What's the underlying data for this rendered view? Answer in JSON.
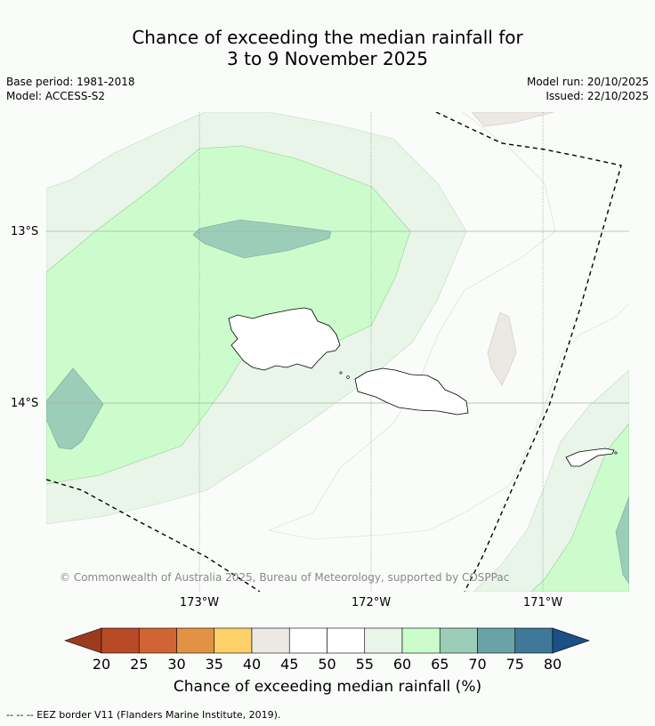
{
  "title": {
    "line1": "Chance of exceeding the median rainfall for",
    "line2": "3 to 9 November 2025"
  },
  "meta": {
    "base_period": "Base period: 1981-2018",
    "model": "Model: ACCESS-S2",
    "model_run": "Model run: 20/10/2025",
    "issued": "Issued: 22/10/2025"
  },
  "axes": {
    "lat_labels": [
      "13°S",
      "14°S"
    ],
    "lon_labels": [
      "173°W",
      "172°W",
      "171°W"
    ]
  },
  "copyright": "© Commonwealth of Australia 2025, Bureau of Meteorology, supported by COSPPac",
  "colorbar": {
    "title": "Chance of exceeding median rainfall (%)",
    "ticks": [
      "20",
      "25",
      "30",
      "35",
      "40",
      "45",
      "50",
      "55",
      "60",
      "65",
      "70",
      "75",
      "80"
    ],
    "colors": {
      "below_20": "#9a3a1f",
      "20_25": "#b84a26",
      "25_30": "#d06432",
      "30_35": "#e29245",
      "35_40": "#fdd06a",
      "40_45": "#ece9e4",
      "45_50": "#ffffff",
      "50_55": "#ffffff",
      "55_60": "#e8f5e8",
      "60_65": "#ccfccc",
      "65_70": "#9ccdb8",
      "70_75": "#6aa3a5",
      "75_80": "#3f7899",
      "above_80": "#1b4f86"
    }
  },
  "footnote": "--  --  -- EEZ border V11 (Flanders Marine Institute, 2019)."
}
